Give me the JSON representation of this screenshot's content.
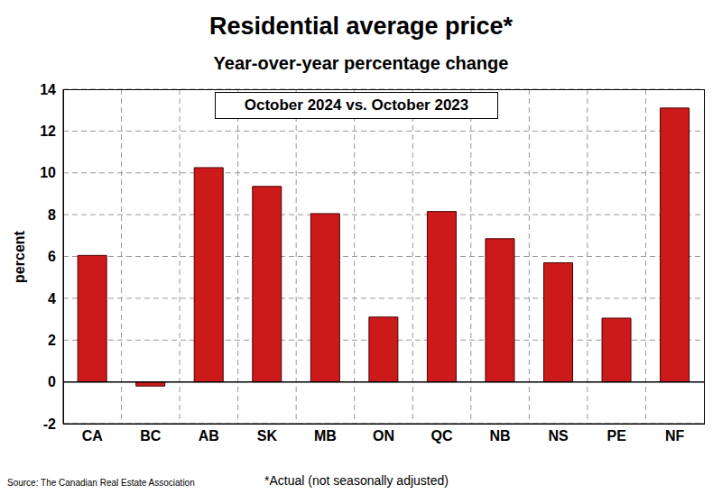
{
  "chart_data": {
    "type": "bar",
    "title": "Residential average price*",
    "subtitle": "Year-over-year percentage change",
    "annotation": "October 2024 vs. October 2023",
    "ylabel": "percent",
    "source": "Source: The Canadian Real Estate Association",
    "footnote": "*Actual (not seasonally adjusted)",
    "categories": [
      "CA",
      "BC",
      "AB",
      "SK",
      "MB",
      "ON",
      "QC",
      "NB",
      "NS",
      "PE",
      "NF"
    ],
    "values": [
      6.05,
      -0.2,
      10.25,
      9.35,
      8.05,
      3.1,
      8.15,
      6.85,
      5.7,
      3.05,
      13.1
    ],
    "color": "#cc1a1a",
    "ylim": [
      -2,
      14
    ],
    "yticks": [
      -2,
      0,
      2,
      4,
      6,
      8,
      10,
      12,
      14
    ],
    "grid": true
  }
}
